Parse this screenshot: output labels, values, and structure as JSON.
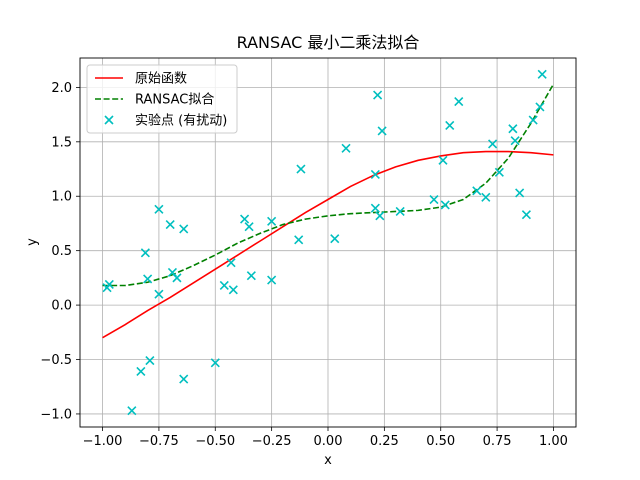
{
  "chart_data": {
    "type": "scatter",
    "title": "RANSAC 最小二乘法拟合",
    "xlabel": "x",
    "ylabel": "y",
    "xlim": [
      -1.1,
      1.1
    ],
    "ylim": [
      -1.12,
      2.27
    ],
    "xticks": [
      -1.0,
      -0.75,
      -0.5,
      -0.25,
      0.0,
      0.25,
      0.5,
      0.75,
      1.0
    ],
    "xtick_labels": [
      "−1.00",
      "−0.75",
      "−0.50",
      "−0.25",
      "0.00",
      "0.25",
      "0.50",
      "0.75",
      "1.00"
    ],
    "yticks": [
      -1.0,
      -0.5,
      0.0,
      0.5,
      1.0,
      1.5,
      2.0
    ],
    "ytick_labels": [
      "−1.0",
      "−0.5",
      "0.0",
      "0.5",
      "1.0",
      "1.5",
      "2.0"
    ],
    "grid": true,
    "legend_position": "top-left",
    "series": [
      {
        "name": "原始函数",
        "kind": "line",
        "style": "solid",
        "color": "#ff0000",
        "x": [
          -1.0,
          -0.9,
          -0.8,
          -0.7,
          -0.6,
          -0.5,
          -0.4,
          -0.3,
          -0.2,
          -0.1,
          0.0,
          0.1,
          0.2,
          0.3,
          0.4,
          0.5,
          0.6,
          0.7,
          0.8,
          0.9,
          1.0
        ],
        "y": [
          -0.3,
          -0.18,
          -0.05,
          0.07,
          0.2,
          0.33,
          0.46,
          0.59,
          0.72,
          0.85,
          0.97,
          1.09,
          1.19,
          1.27,
          1.33,
          1.37,
          1.4,
          1.41,
          1.41,
          1.4,
          1.38
        ]
      },
      {
        "name": "RANSAC拟合",
        "kind": "line",
        "style": "dashed",
        "color": "#008000",
        "x": [
          -1.0,
          -0.9,
          -0.8,
          -0.7,
          -0.6,
          -0.5,
          -0.4,
          -0.3,
          -0.2,
          -0.1,
          0.0,
          0.1,
          0.2,
          0.3,
          0.4,
          0.5,
          0.6,
          0.7,
          0.8,
          0.9,
          1.0
        ],
        "y": [
          0.18,
          0.18,
          0.21,
          0.27,
          0.36,
          0.46,
          0.57,
          0.66,
          0.74,
          0.79,
          0.82,
          0.84,
          0.85,
          0.86,
          0.87,
          0.9,
          0.97,
          1.12,
          1.35,
          1.67,
          2.03
        ]
      },
      {
        "name": "实验点 (有扰动)",
        "kind": "scatter",
        "marker": "x",
        "color": "#00bfbf",
        "x": [
          -0.98,
          -0.97,
          -0.87,
          -0.83,
          -0.81,
          -0.8,
          -0.79,
          -0.75,
          -0.75,
          -0.7,
          -0.69,
          -0.67,
          -0.64,
          -0.64,
          -0.5,
          -0.46,
          -0.43,
          -0.42,
          -0.37,
          -0.35,
          -0.34,
          -0.25,
          -0.25,
          -0.13,
          -0.12,
          0.03,
          0.08,
          0.21,
          0.21,
          0.22,
          0.23,
          0.24,
          0.32,
          0.47,
          0.51,
          0.52,
          0.54,
          0.58,
          0.66,
          0.7,
          0.73,
          0.76,
          0.82,
          0.83,
          0.85,
          0.88,
          0.91,
          0.94,
          0.95
        ],
        "y": [
          0.16,
          0.19,
          -0.97,
          -0.61,
          0.48,
          0.24,
          -0.51,
          0.1,
          0.88,
          0.74,
          0.3,
          0.25,
          0.7,
          -0.68,
          -0.53,
          0.18,
          0.39,
          0.14,
          0.79,
          0.72,
          0.27,
          0.77,
          0.23,
          0.6,
          1.25,
          0.61,
          1.44,
          1.2,
          0.89,
          1.93,
          0.82,
          1.6,
          0.86,
          0.97,
          1.33,
          0.92,
          1.65,
          1.87,
          1.05,
          0.99,
          1.48,
          1.22,
          1.62,
          1.51,
          1.03,
          0.83,
          1.7,
          1.82,
          2.12
        ]
      }
    ]
  }
}
